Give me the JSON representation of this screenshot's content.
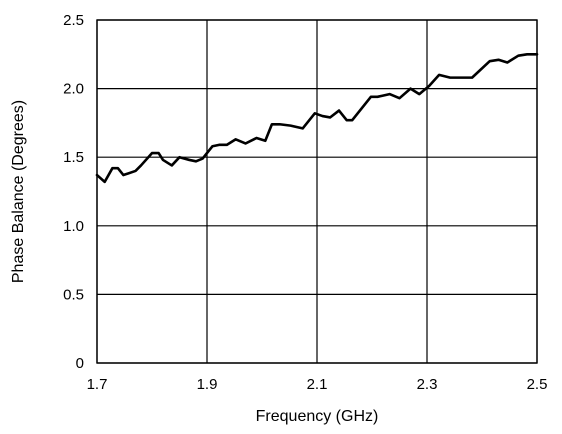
{
  "chart_data": {
    "type": "line",
    "title": "",
    "xlabel": "Frequency (GHz)",
    "ylabel": "Phase Balance (Degrees)",
    "xlim": [
      1.7,
      2.5
    ],
    "ylim": [
      0,
      2.5
    ],
    "grid": true,
    "x_ticks": [
      "1.7",
      "1.9",
      "2.1",
      "2.3",
      "2.5"
    ],
    "x_tick_values": [
      1.7,
      1.9,
      2.1,
      2.3,
      2.5
    ],
    "y_ticks": [
      "0",
      "0.5",
      "1.0",
      "1.5",
      "2.0",
      "2.5"
    ],
    "y_tick_values": [
      0,
      0.5,
      1.0,
      1.5,
      2.0,
      2.5
    ],
    "series": [
      {
        "x": [
          1.7,
          1.714,
          1.728,
          1.738,
          1.748,
          1.77,
          1.78,
          1.8,
          1.812,
          1.82,
          1.836,
          1.85,
          1.868,
          1.88,
          1.892,
          1.91,
          1.922,
          1.936,
          1.952,
          1.97,
          1.99,
          2.006,
          2.018,
          2.032,
          2.052,
          2.074,
          2.096,
          2.11,
          2.124,
          2.14,
          2.154,
          2.164,
          2.176,
          2.198,
          2.21,
          2.232,
          2.25,
          2.27,
          2.286,
          2.304,
          2.322,
          2.342,
          2.364,
          2.382,
          2.414,
          2.43,
          2.446,
          2.466,
          2.482,
          2.5
        ],
        "y": [
          1.37,
          1.32,
          1.42,
          1.42,
          1.37,
          1.4,
          1.44,
          1.53,
          1.53,
          1.48,
          1.44,
          1.5,
          1.48,
          1.47,
          1.49,
          1.58,
          1.59,
          1.59,
          1.63,
          1.6,
          1.64,
          1.62,
          1.74,
          1.74,
          1.73,
          1.71,
          1.82,
          1.8,
          1.79,
          1.84,
          1.77,
          1.77,
          1.83,
          1.94,
          1.94,
          1.96,
          1.93,
          2.0,
          1.96,
          2.02,
          2.1,
          2.08,
          2.08,
          2.08,
          2.2,
          2.21,
          2.19,
          2.24,
          2.25,
          2.25
        ]
      }
    ]
  }
}
